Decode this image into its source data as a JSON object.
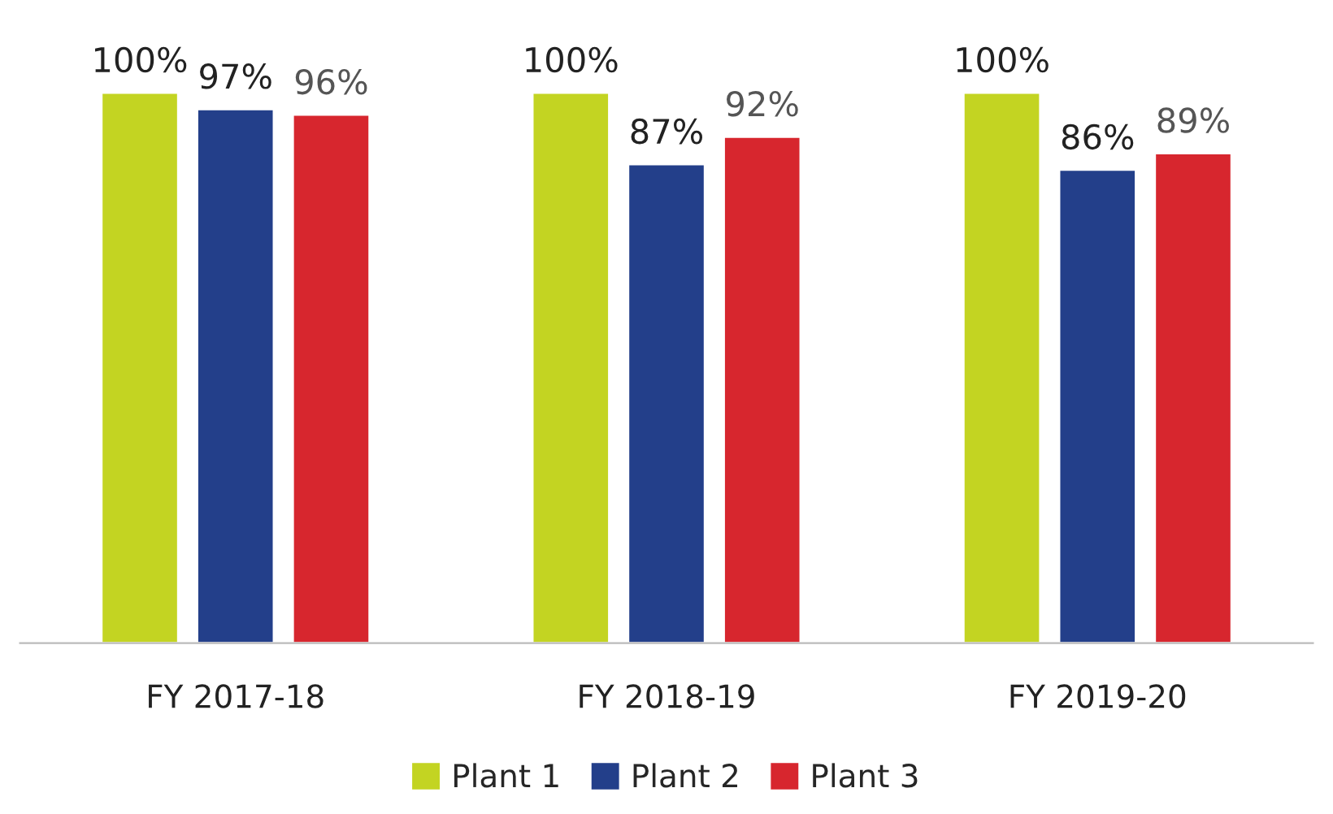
{
  "chart_data": {
    "type": "bar",
    "categories": [
      "FY 2017-18",
      "FY 2018-19",
      "FY 2019-20"
    ],
    "series": [
      {
        "name": "Plant 1",
        "color": "#c3d422",
        "values": [
          100,
          100,
          100
        ],
        "value_labels": [
          "100%",
          "100%",
          "100%"
        ]
      },
      {
        "name": "Plant 2",
        "color": "#233f8a",
        "values": [
          97,
          87,
          86
        ],
        "value_labels": [
          "97%",
          "87%",
          "86%"
        ]
      },
      {
        "name": "Plant 3",
        "color": "#d7262e",
        "values": [
          96,
          92,
          89
        ],
        "value_labels": [
          "96%",
          "92%",
          "89%"
        ]
      }
    ],
    "legend": "bottom",
    "grid": false,
    "tick_labels": "x"
  }
}
